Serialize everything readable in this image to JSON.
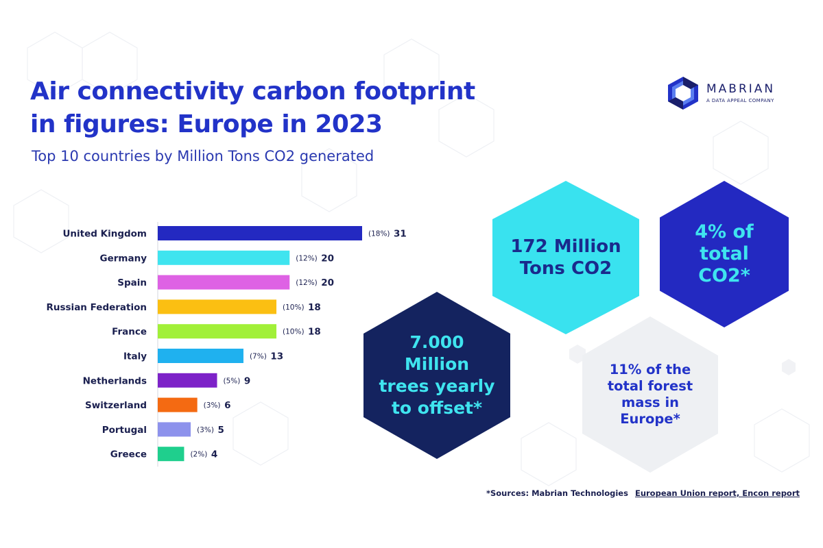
{
  "title_line1": "Air connectivity carbon footprint",
  "title_line2": "in figures: Europe in 2023",
  "subtitle": "Top 10 countries by Million Tons CO2 generated",
  "logo": {
    "name": "MABRIAN",
    "tagline": "A DATA APPEAL COMPANY"
  },
  "highlights": {
    "total_tons": "172 Million Tons CO2",
    "share_total": "4% of total CO2*",
    "trees": "7.000 Million trees yearly to offset*",
    "forest": "11% of the total forest mass in Europe*"
  },
  "sources": {
    "label": "*Sources: Mabrian Technologies",
    "links": "European Union report, Encon report"
  },
  "colors": {
    "title": "#2233c8",
    "hex_cyan": "#39e2ef",
    "hex_blue": "#2329c1",
    "hex_navy": "#14235f",
    "hex_grey": "#eef0f3"
  },
  "chart_data": {
    "type": "bar",
    "orientation": "horizontal",
    "categories": [
      "United Kingdom",
      "Germany",
      "Spain",
      "Russian Federation",
      "France",
      "Italy",
      "Netherlands",
      "Switzerland",
      "Portugal",
      "Greece"
    ],
    "values": [
      31,
      20,
      20,
      18,
      18,
      13,
      9,
      6,
      5,
      4
    ],
    "percent_labels": [
      "(18%)",
      "(12%)",
      "(12%)",
      "(10%)",
      "(10%)",
      "(7%)",
      "(5%)",
      "(3%)",
      "(3%)",
      "(2%)"
    ],
    "colors": [
      "#2329c1",
      "#3fe4ef",
      "#de62e4",
      "#fbbf12",
      "#a1f038",
      "#1fb1ef",
      "#7d22c8",
      "#f46a12",
      "#8d92ec",
      "#1fcf8d"
    ],
    "xlim": [
      0,
      31
    ],
    "grid": false,
    "legend": "none"
  }
}
